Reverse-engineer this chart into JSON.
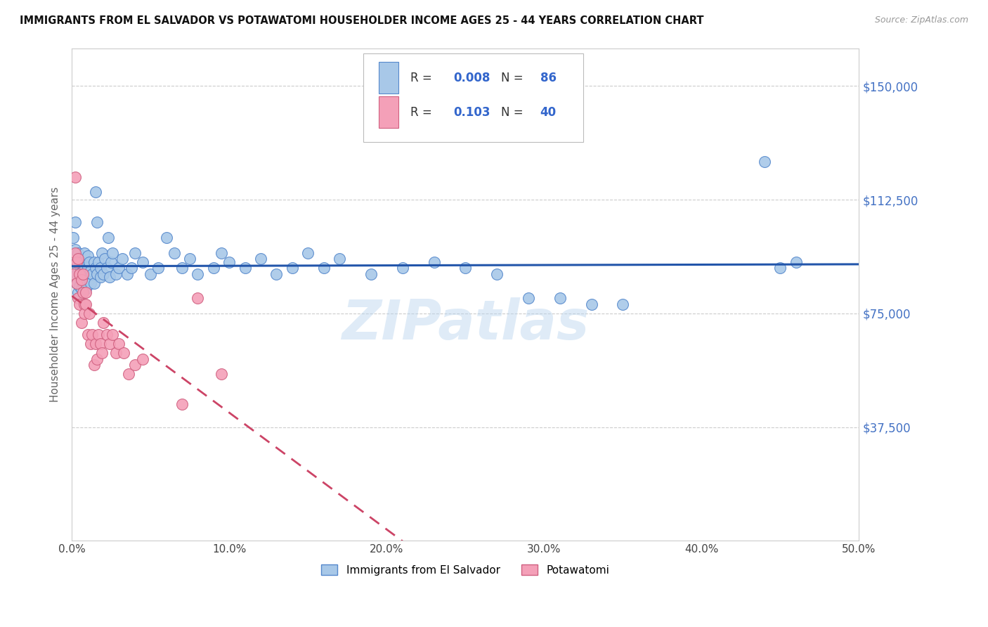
{
  "title": "IMMIGRANTS FROM EL SALVADOR VS POTAWATOMI HOUSEHOLDER INCOME AGES 25 - 44 YEARS CORRELATION CHART",
  "source": "Source: ZipAtlas.com",
  "ylabel": "Householder Income Ages 25 - 44 years",
  "x_min": 0.0,
  "x_max": 0.5,
  "y_min": 0,
  "y_max": 162500,
  "yticks": [
    37500,
    75000,
    112500,
    150000
  ],
  "ytick_labels": [
    "$37,500",
    "$75,000",
    "$112,500",
    "$150,000"
  ],
  "xticks": [
    0.0,
    0.1,
    0.2,
    0.3,
    0.4,
    0.5
  ],
  "xtick_labels": [
    "0.0%",
    "10.0%",
    "20.0%",
    "30.0%",
    "40.0%",
    "50.0%"
  ],
  "blue_color": "#a8c8e8",
  "pink_color": "#f4a0b8",
  "blue_edge_color": "#5588cc",
  "pink_edge_color": "#d06080",
  "blue_line_color": "#2255aa",
  "pink_line_color": "#cc4466",
  "label1": "Immigrants from El Salvador",
  "label2": "Potawatomi",
  "watermark": "ZIPatlas",
  "background_color": "#ffffff",
  "grid_color": "#cccccc",
  "blue_scatter_x": [
    0.001,
    0.002,
    0.002,
    0.003,
    0.003,
    0.003,
    0.004,
    0.004,
    0.004,
    0.005,
    0.005,
    0.005,
    0.005,
    0.006,
    0.006,
    0.006,
    0.007,
    0.007,
    0.007,
    0.007,
    0.008,
    0.008,
    0.008,
    0.009,
    0.009,
    0.01,
    0.01,
    0.01,
    0.011,
    0.011,
    0.012,
    0.012,
    0.013,
    0.014,
    0.014,
    0.015,
    0.015,
    0.016,
    0.016,
    0.017,
    0.018,
    0.018,
    0.019,
    0.02,
    0.021,
    0.022,
    0.023,
    0.024,
    0.025,
    0.026,
    0.028,
    0.03,
    0.032,
    0.035,
    0.038,
    0.04,
    0.045,
    0.05,
    0.055,
    0.06,
    0.065,
    0.07,
    0.075,
    0.08,
    0.09,
    0.095,
    0.1,
    0.11,
    0.12,
    0.13,
    0.14,
    0.15,
    0.16,
    0.17,
    0.19,
    0.21,
    0.23,
    0.25,
    0.27,
    0.29,
    0.31,
    0.33,
    0.35,
    0.44,
    0.45,
    0.46
  ],
  "blue_scatter_y": [
    100000,
    96000,
    105000,
    88000,
    92000,
    85000,
    90000,
    82000,
    95000,
    88000,
    84000,
    92000,
    80000,
    87000,
    93000,
    83000,
    89000,
    85000,
    91000,
    88000,
    95000,
    86000,
    90000,
    88000,
    83000,
    94000,
    87000,
    90000,
    86000,
    92000,
    89000,
    85000,
    88000,
    92000,
    85000,
    115000,
    90000,
    105000,
    88000,
    92000,
    87000,
    90000,
    95000,
    88000,
    93000,
    90000,
    100000,
    87000,
    92000,
    95000,
    88000,
    90000,
    93000,
    88000,
    90000,
    95000,
    92000,
    88000,
    90000,
    100000,
    95000,
    90000,
    93000,
    88000,
    90000,
    95000,
    92000,
    90000,
    93000,
    88000,
    90000,
    95000,
    90000,
    93000,
    88000,
    90000,
    92000,
    90000,
    88000,
    80000,
    80000,
    78000,
    78000,
    125000,
    90000,
    92000
  ],
  "pink_scatter_x": [
    0.001,
    0.002,
    0.002,
    0.003,
    0.003,
    0.004,
    0.004,
    0.005,
    0.005,
    0.006,
    0.006,
    0.007,
    0.007,
    0.008,
    0.008,
    0.009,
    0.009,
    0.01,
    0.011,
    0.012,
    0.013,
    0.014,
    0.015,
    0.016,
    0.017,
    0.018,
    0.019,
    0.02,
    0.022,
    0.024,
    0.026,
    0.028,
    0.03,
    0.033,
    0.036,
    0.04,
    0.045,
    0.07,
    0.08,
    0.095
  ],
  "pink_scatter_y": [
    88000,
    120000,
    95000,
    92000,
    85000,
    93000,
    80000,
    88000,
    78000,
    86000,
    72000,
    88000,
    82000,
    78000,
    75000,
    82000,
    78000,
    68000,
    75000,
    65000,
    68000,
    58000,
    65000,
    60000,
    68000,
    65000,
    62000,
    72000,
    68000,
    65000,
    68000,
    62000,
    65000,
    62000,
    55000,
    58000,
    60000,
    45000,
    80000,
    55000
  ]
}
